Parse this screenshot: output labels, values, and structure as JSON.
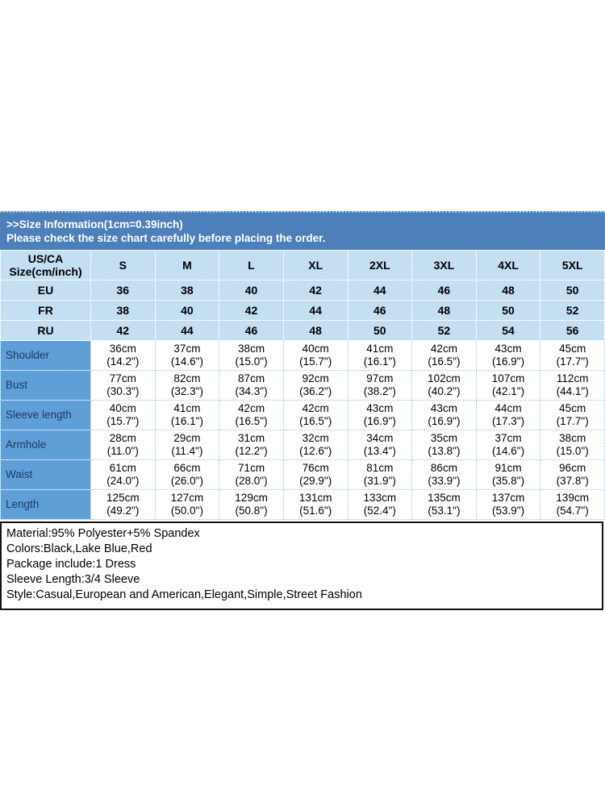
{
  "banner": {
    "title": ">>Size Information(1cm=0.39inch)",
    "subtitle": "Please check the size chart carefully before placing the order."
  },
  "colors": {
    "banner_blue": "#4d7fba",
    "header_light_blue": "#c4def2",
    "label_column_blue": "#5f9fd8",
    "grid_dotted_blue": "#9dc3e6",
    "info_border_black": "#141414"
  },
  "size_table": {
    "corner_header": "US/CA\nSize(cm/inch)",
    "size_labels": [
      "S",
      "M",
      "L",
      "XL",
      "2XL",
      "3XL",
      "4XL",
      "5XL"
    ],
    "region_rows": [
      {
        "label": "EU",
        "values": [
          "36",
          "38",
          "40",
          "42",
          "44",
          "46",
          "48",
          "50"
        ]
      },
      {
        "label": "FR",
        "values": [
          "38",
          "40",
          "42",
          "44",
          "46",
          "48",
          "50",
          "52"
        ]
      },
      {
        "label": "RU",
        "values": [
          "42",
          "44",
          "46",
          "48",
          "50",
          "52",
          "54",
          "56"
        ]
      }
    ],
    "measurement_rows": [
      {
        "label": "Shoulder",
        "values": [
          "36cm\n(14.2\")",
          "37cm\n(14.6\")",
          "38cm\n(15.0\")",
          "40cm\n(15.7\")",
          "41cm\n(16.1\")",
          "42cm\n(16.5\")",
          "43cm\n(16.9\")",
          "45cm\n(17.7\")"
        ]
      },
      {
        "label": "Bust",
        "values": [
          "77cm\n(30.3\")",
          "82cm\n(32.3\")",
          "87cm\n(34.3\")",
          "92cm\n(36.2\")",
          "97cm\n(38.2\")",
          "102cm\n(40.2\")",
          "107cm\n(42.1\")",
          "112cm\n(44.1\")"
        ]
      },
      {
        "label": "Sleeve length",
        "values": [
          "40cm\n(15.7\")",
          "41cm\n(16.1\")",
          "42cm\n(16.5\")",
          "42cm\n(16.5\")",
          "43cm\n(16.9\")",
          "43cm\n(16.9\")",
          "44cm\n(17.3\")",
          "45cm\n(17.7\")"
        ]
      },
      {
        "label": "Armhole",
        "values": [
          "28cm\n(11.0\")",
          "29cm\n(11.4\")",
          "31cm\n(12.2\")",
          "32cm\n(12.6\")",
          "34cm\n(13.4\")",
          "35cm\n(13.8\")",
          "37cm\n(14.6\")",
          "38cm\n(15.0\")"
        ]
      },
      {
        "label": "Waist",
        "values": [
          "61cm\n(24.0\")",
          "66cm\n(26.0\")",
          "71cm\n(28.0\")",
          "76cm\n(29.9\")",
          "81cm\n(31.9\")",
          "86cm\n(33.9\")",
          "91cm\n(35.8\")",
          "96cm\n(37.8\")"
        ]
      },
      {
        "label": "Length",
        "values": [
          "125cm\n(49.2\")",
          "127cm\n(50.0\")",
          "129cm\n(50.8\")",
          "131cm\n(51.6\")",
          "133cm\n(52.4\")",
          "135cm\n(53.1\")",
          "137cm\n(53.9\")",
          "139cm\n(54.7\")"
        ]
      }
    ]
  },
  "product_info": {
    "lines": [
      "Material:95% Polyester+5% Spandex",
      "Colors:Black,Lake Blue,Red",
      "Package include:1 Dress",
      "Sleeve Length:3/4 Sleeve",
      "Style:Casual,European and American,Elegant,Simple,Street Fashion"
    ]
  }
}
